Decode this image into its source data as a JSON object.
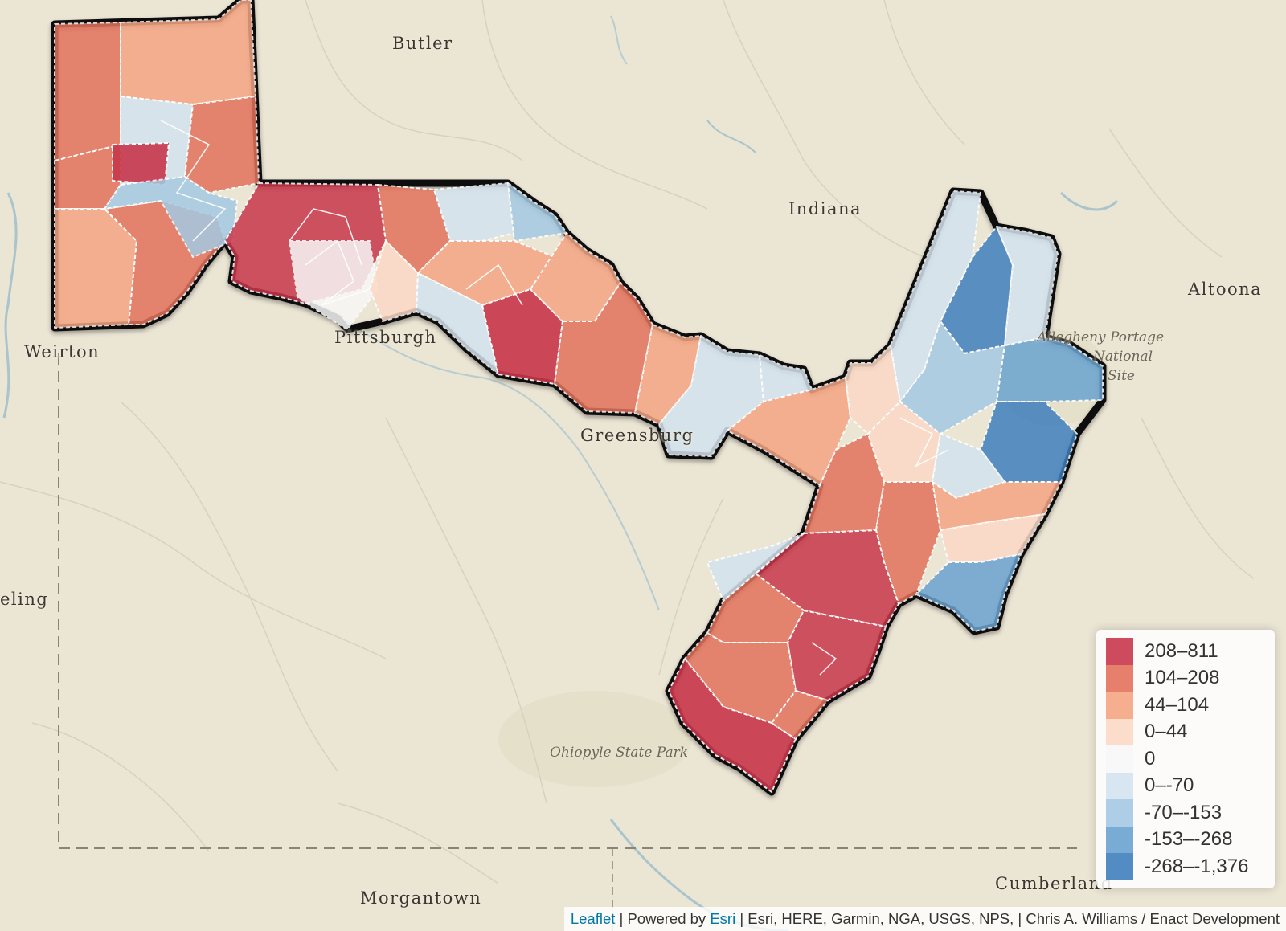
{
  "places": {
    "butler": "Butler",
    "indiana": "Indiana",
    "altoona": "Altoona",
    "weirton": "Weirton",
    "pittsburgh": "Pittsburgh",
    "greensburg": "Greensburg",
    "wheeling": "eling",
    "morgantown": "Morgantown",
    "cumberland": "Cumberland"
  },
  "parks": {
    "allegheny_line1": "Allegheny Portage",
    "allegheny_line2": "National",
    "allegheny_line3": "Site",
    "ohiopyle": "Ohiopyle State Park"
  },
  "legend": {
    "items": [
      {
        "label": "208–811",
        "color": "#c8374b"
      },
      {
        "label": "104–208",
        "color": "#e3725c"
      },
      {
        "label": "44–104",
        "color": "#f4a582"
      },
      {
        "label": "0–44",
        "color": "#fcd9c6"
      },
      {
        "label": "0",
        "color": "#f7f7f7"
      },
      {
        "label": "0–-70",
        "color": "#d4e3ef"
      },
      {
        "label": "-70–-153",
        "color": "#a4c9e3"
      },
      {
        "label": "-153–-268",
        "color": "#6aa3d0"
      },
      {
        "label": "-268–-1,376",
        "color": "#3f7fbd"
      }
    ]
  },
  "attribution": {
    "leaflet": "Leaflet",
    "sep1": " | Powered by ",
    "esri": "Esri",
    "rest": " | Esri, HERE, Garmin, NGA, USGS, NPS, | Chris A. Williams / Enact Development"
  },
  "colors": {
    "background": "#ebe5d4",
    "outline": "#111111",
    "precinct_border": "#ffffff"
  }
}
